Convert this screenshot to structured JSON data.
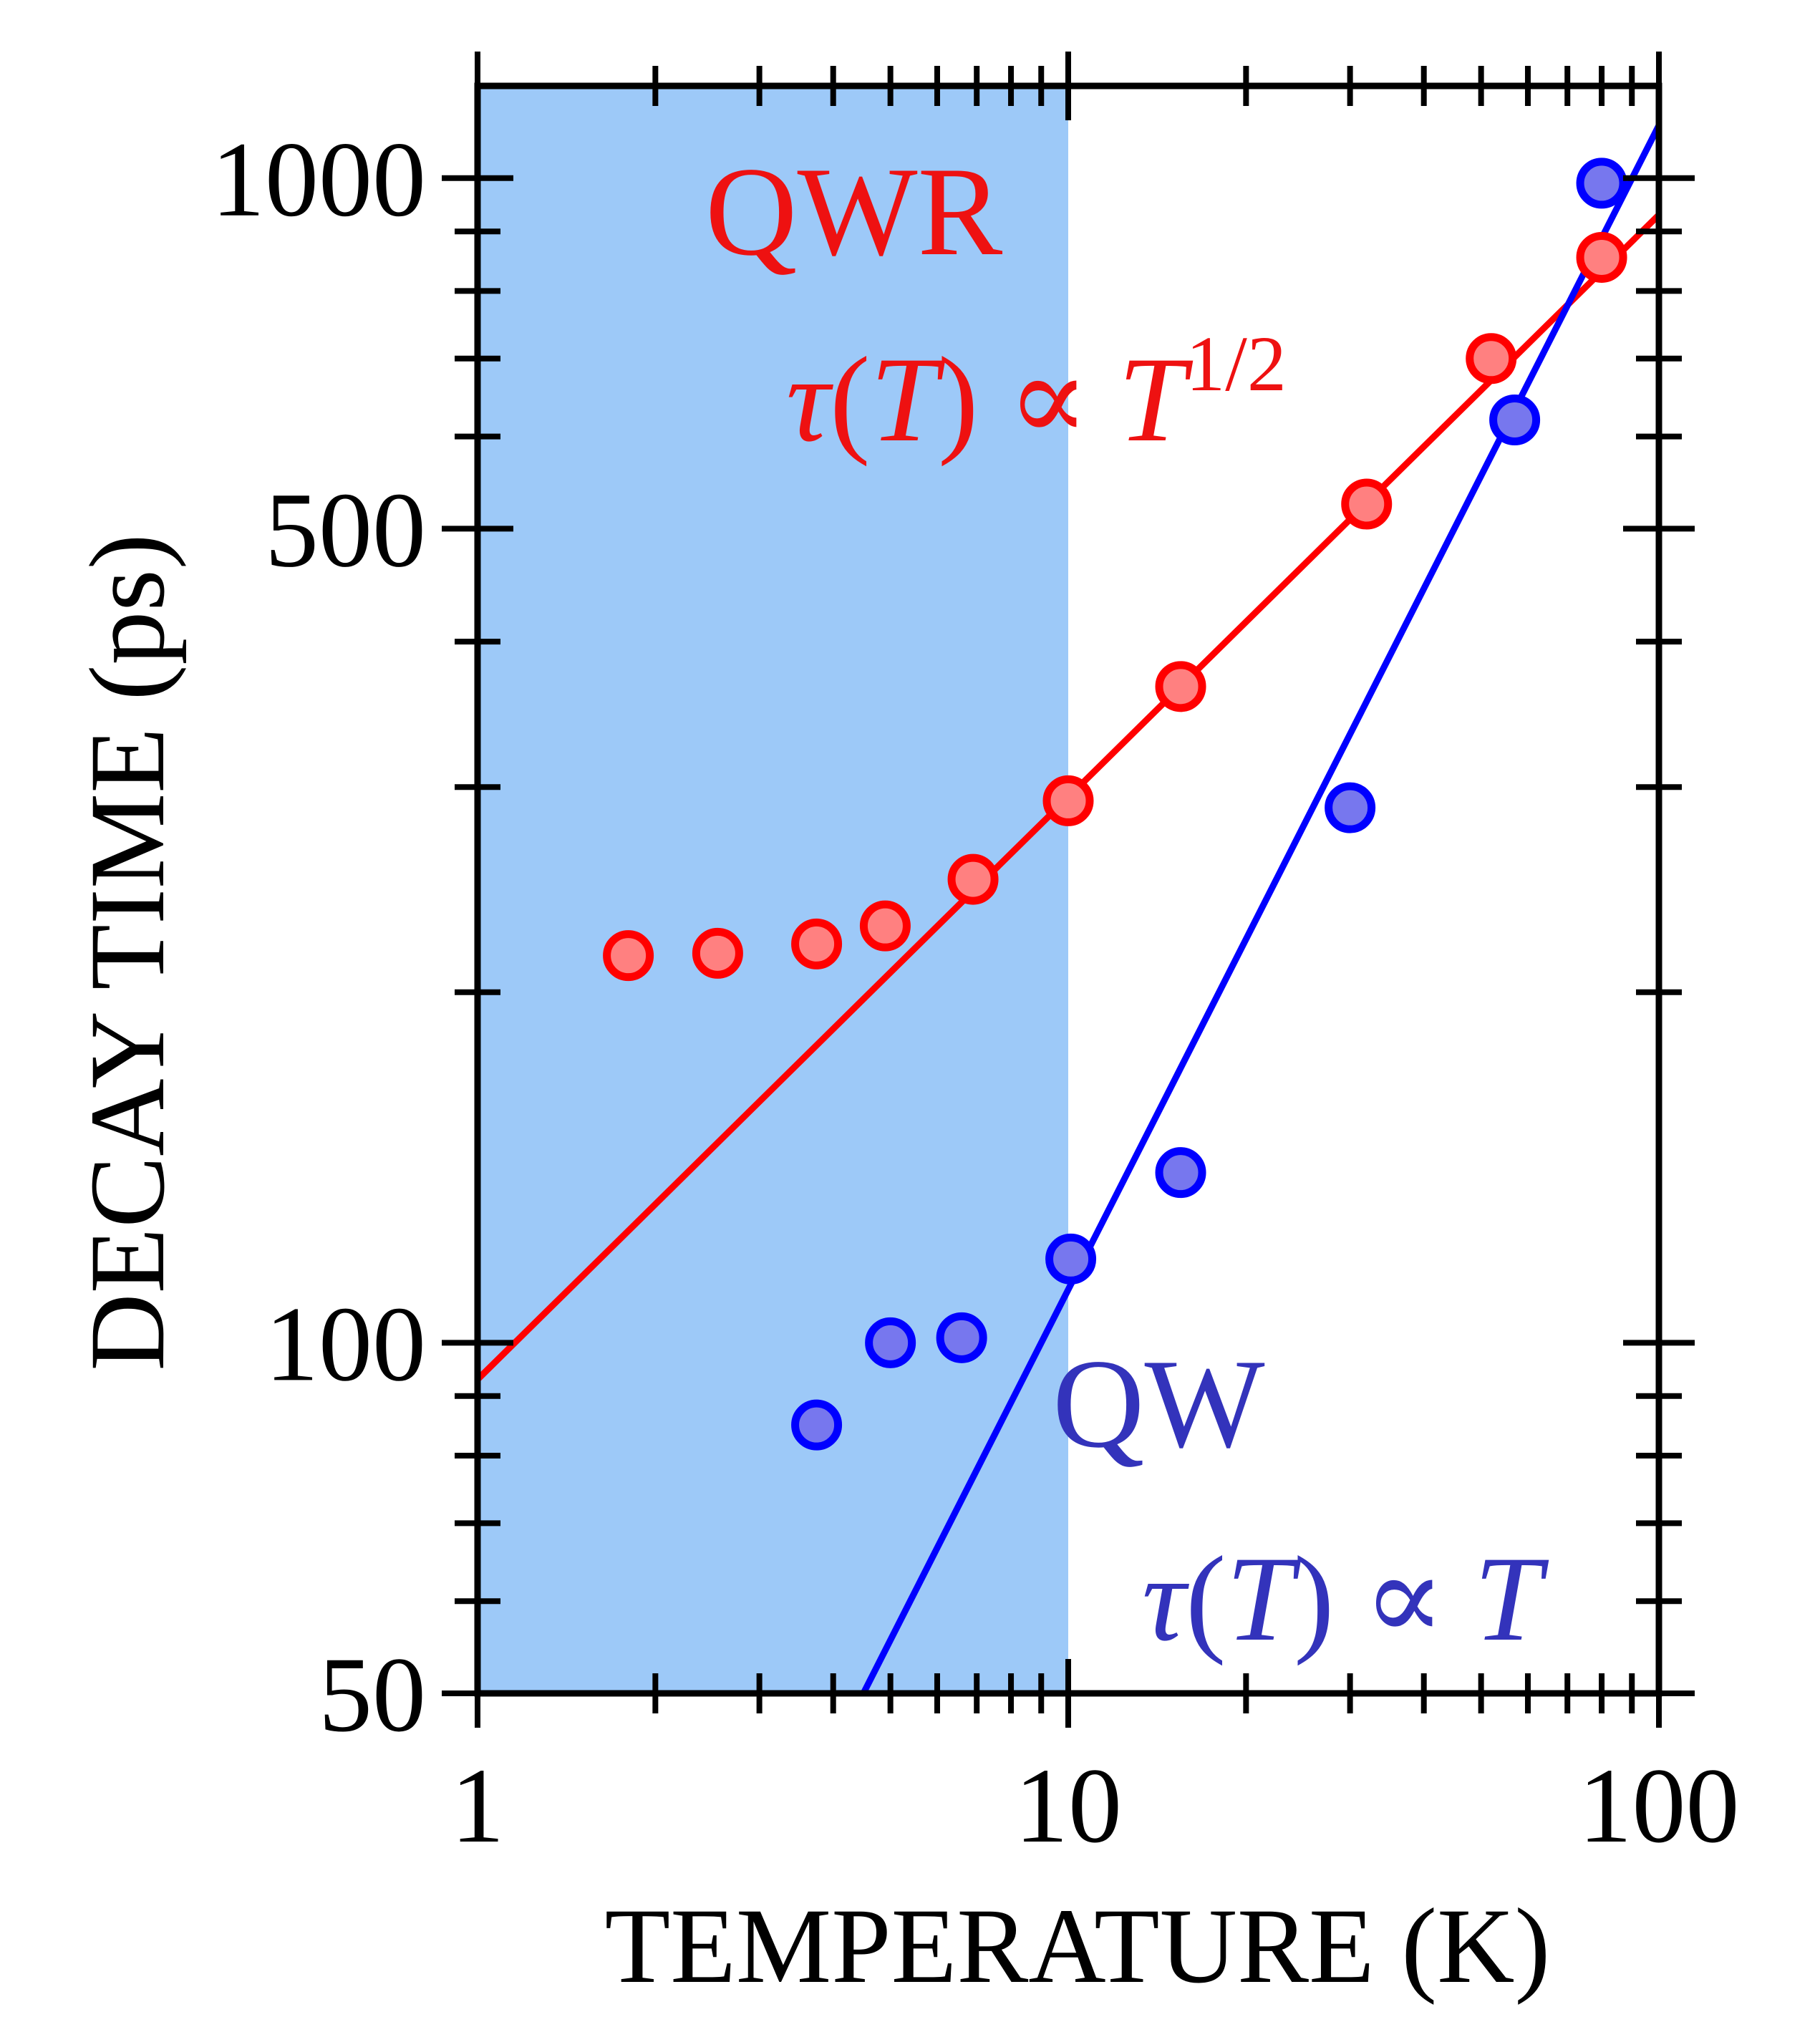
{
  "chart_data": {
    "type": "scatter",
    "x_scale": "log",
    "y_scale": "log",
    "xlim": [
      1,
      100
    ],
    "ylim": [
      50,
      1200
    ],
    "xlabel": "TEMPERATURE (K)",
    "ylabel": "DECAY TIME (ps)",
    "x_ticks": [
      "1",
      "10",
      "100"
    ],
    "y_ticks": [
      "50",
      "100",
      "500",
      "1000"
    ],
    "shaded_region": {
      "x_from": 1,
      "x_to": 10,
      "color": "#9dc9f8"
    },
    "grid": false,
    "series": [
      {
        "name": "QWR",
        "color": "#ff0000",
        "fill": "#ff8080",
        "points": [
          {
            "x": 1.8,
            "y": 215
          },
          {
            "x": 2.55,
            "y": 216
          },
          {
            "x": 3.75,
            "y": 220
          },
          {
            "x": 4.9,
            "y": 228
          },
          {
            "x": 6.9,
            "y": 250
          },
          {
            "x": 10,
            "y": 292
          },
          {
            "x": 15.5,
            "y": 366
          },
          {
            "x": 32,
            "y": 525
          },
          {
            "x": 52,
            "y": 700
          },
          {
            "x": 80,
            "y": 855
          }
        ],
        "fit": {
          "x": [
            1,
            100
          ],
          "y": [
            93,
            930
          ]
        },
        "label": "QWR",
        "formula": {
          "tau": "τ",
          "T": "T",
          "open": "(",
          "close": ")",
          "prop": "∝",
          "exp": "1/2"
        }
      },
      {
        "name": "QW",
        "color": "#0000ff",
        "fill": "#7777ee",
        "points": [
          {
            "x": 3.75,
            "y": 85
          },
          {
            "x": 5.0,
            "y": 100
          },
          {
            "x": 6.6,
            "y": 101
          },
          {
            "x": 10.1,
            "y": 118
          },
          {
            "x": 15.5,
            "y": 140
          },
          {
            "x": 30,
            "y": 288
          },
          {
            "x": 57,
            "y": 620
          },
          {
            "x": 80,
            "y": 990
          }
        ],
        "fit": {
          "x": [
            4.5,
            100
          ],
          "y": [
            50,
            1110
          ]
        },
        "label": "QW",
        "formula": {
          "tau": "τ",
          "T": "T",
          "open": "(",
          "close": ")",
          "prop": "∝",
          "T2": "T"
        }
      }
    ]
  },
  "colors": {
    "axis": "#000000",
    "qwr_text": "#ee1111",
    "qw_text": "#3333bb"
  }
}
